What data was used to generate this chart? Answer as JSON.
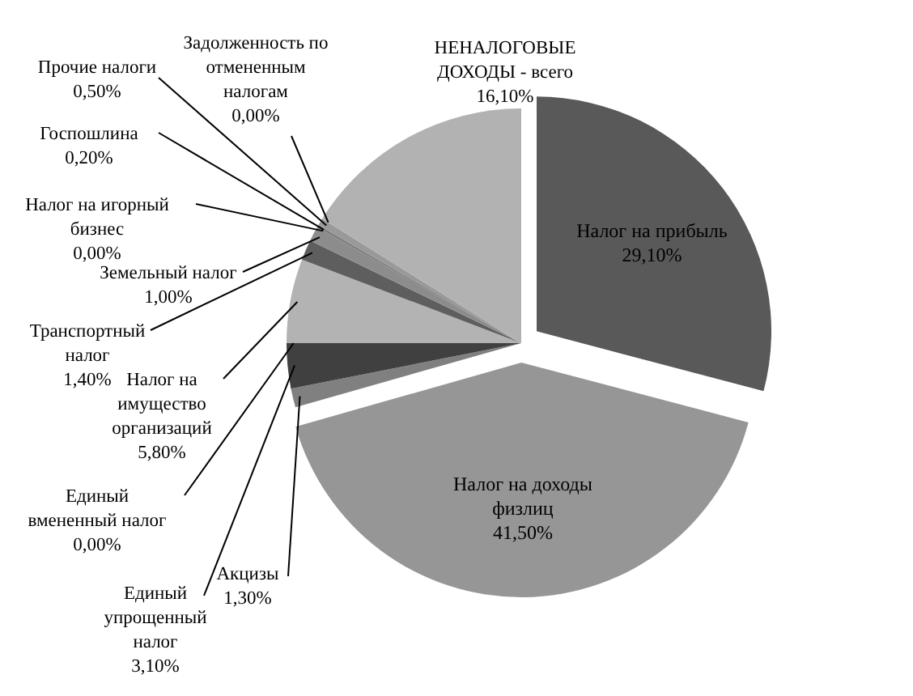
{
  "chart_data": {
    "type": "pie",
    "categories": [
      "Налог на прибыль",
      "Налог на доходы физлиц",
      "Акцизы",
      "Единый упрощенный налог",
      "Единый вмененный налог",
      "Налог на имущество организаций",
      "Транспортный налог",
      "Земельный налог",
      "Налог на игорный бизнес",
      "Госпошлина",
      "Прочие налоги",
      "Задолженность по отмененным налогам",
      "НЕНАЛОГОВЫЕ ДОХОДЫ - всего"
    ],
    "values": [
      29.1,
      41.5,
      1.3,
      3.1,
      0,
      5.8,
      1.4,
      1.0,
      0,
      0.2,
      0.5,
      0,
      16.1
    ],
    "value_labels": [
      "29,10%",
      "41,50%",
      "1,30%",
      "3,10%",
      "0,00%",
      "5,80%",
      "1,40%",
      "1,00%",
      "0,00%",
      "0,20%",
      "0,50%",
      "0,00%",
      "16,10%"
    ],
    "colors": [
      "#595959",
      "#969696",
      "#808080",
      "#404040",
      "#333333",
      "#b3b3b3",
      "#5e5e5e",
      "#8c8c8c",
      "#666666",
      "#7f7f7f",
      "#999999",
      "#4d4d4d",
      "#b2b2b2"
    ]
  }
}
